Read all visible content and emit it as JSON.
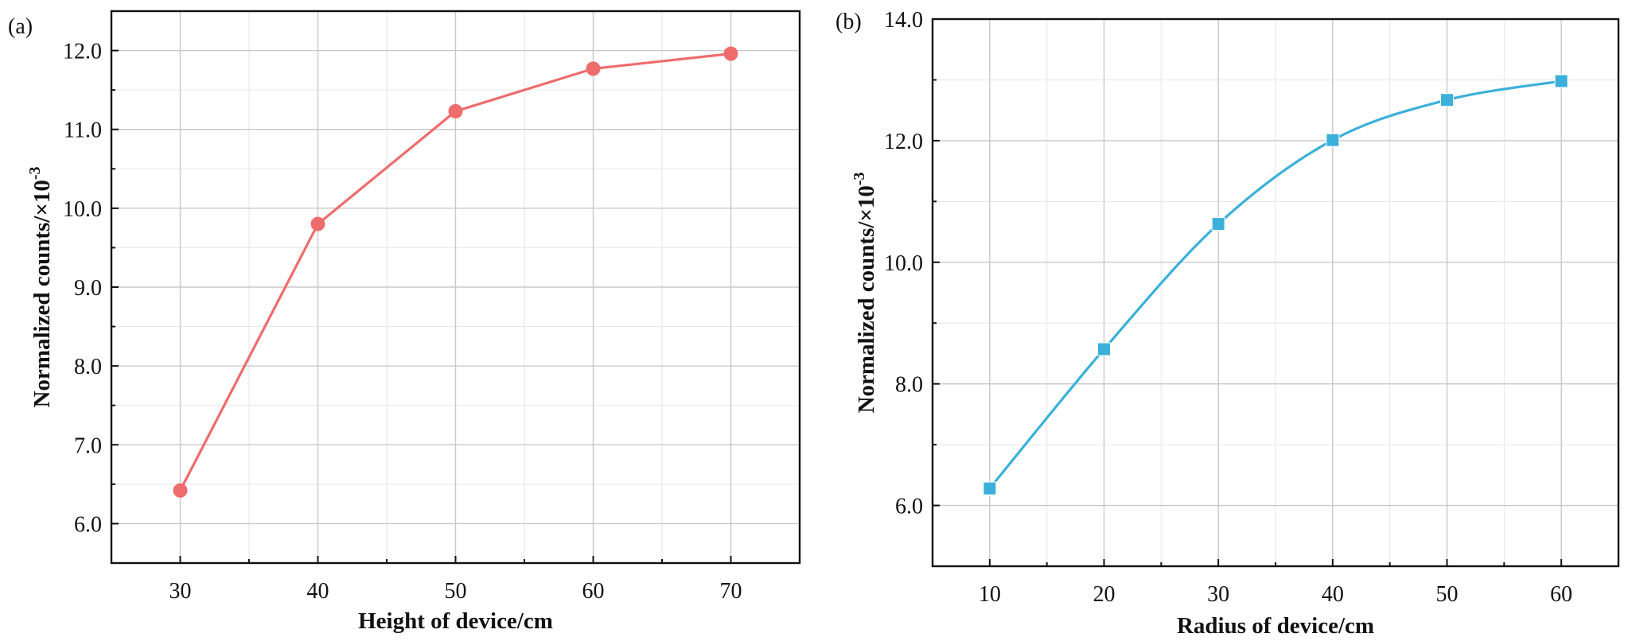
{
  "chart_data": [
    {
      "panel_label": "(a)",
      "type": "line",
      "marker": "circle",
      "color": "#EE6C6C",
      "xlabel": "Height of device/cm",
      "ylabel_main": "Normalized counts/×10",
      "ylabel_exp": "-3",
      "xlim": [
        25,
        75
      ],
      "ylim": [
        5.5,
        12.5
      ],
      "xticks": [
        30,
        40,
        50,
        60,
        70
      ],
      "xtick_labels": [
        "30",
        "40",
        "50",
        "60",
        "70"
      ],
      "yticks": [
        6.0,
        7.0,
        8.0,
        9.0,
        10.0,
        11.0,
        12.0
      ],
      "ytick_labels": [
        "6.0",
        "7.0",
        "8.0",
        "9.0",
        "10.0",
        "11.0",
        "12.0"
      ],
      "grid": true,
      "x": [
        30,
        40,
        50,
        60,
        70
      ],
      "series": [
        {
          "values": [
            6.42,
            9.8,
            11.23,
            11.77,
            11.96
          ]
        }
      ]
    },
    {
      "panel_label": "(b)",
      "type": "line",
      "marker": "square",
      "color": "#3BB0DA",
      "xlabel": "Radius of device/cm",
      "ylabel_main": "Normalized counts/×10",
      "ylabel_exp": "-3",
      "xlim": [
        5,
        65
      ],
      "ylim": [
        5.0,
        14.0
      ],
      "xticks": [
        10,
        20,
        30,
        40,
        50,
        60
      ],
      "xtick_labels": [
        "10",
        "20",
        "30",
        "40",
        "50",
        "60"
      ],
      "yticks": [
        6.0,
        8.0,
        10.0,
        12.0,
        14.0
      ],
      "ytick_labels": [
        "6.0",
        "8.0",
        "10.0",
        "12.0",
        "14.0"
      ],
      "grid": true,
      "x": [
        10,
        20,
        30,
        40,
        50,
        60
      ],
      "series": [
        {
          "values": [
            6.28,
            8.57,
            10.63,
            12.01,
            12.67,
            12.98
          ]
        }
      ]
    }
  ]
}
